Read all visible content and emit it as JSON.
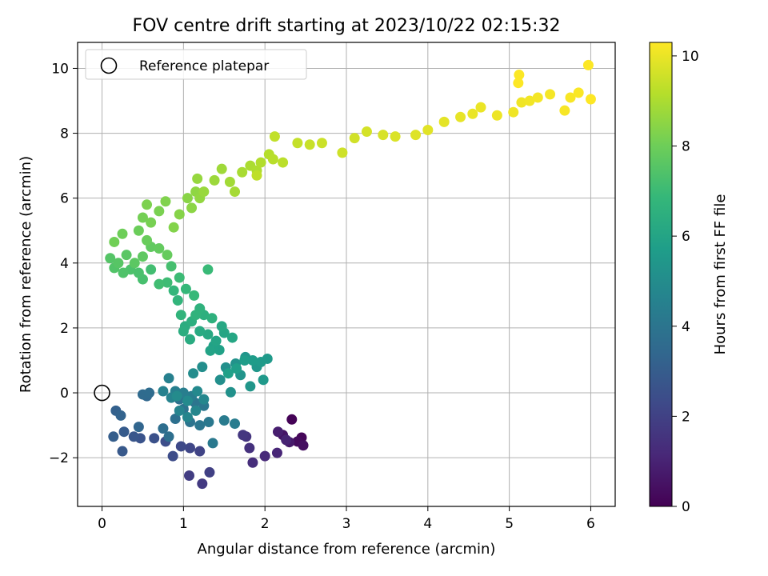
{
  "chart_data": {
    "type": "scatter",
    "title": "FOV centre drift starting at 2023/10/22 02:15:32",
    "xlabel": "Angular distance from reference (arcmin)",
    "ylabel": "Rotation from reference (arcmin)",
    "xlim": [
      -0.3,
      6.3
    ],
    "ylim": [
      -3.5,
      10.8
    ],
    "xticks": [
      0,
      1,
      2,
      3,
      4,
      5,
      6
    ],
    "yticks": [
      -2,
      0,
      2,
      4,
      6,
      8,
      10
    ],
    "xtick_labels": [
      "0",
      "1",
      "2",
      "3",
      "4",
      "5",
      "6"
    ],
    "ytick_labels": [
      "−2",
      "0",
      "2",
      "4",
      "6",
      "8",
      "10"
    ],
    "grid": true,
    "legend": {
      "placement": "top-left",
      "entries": [
        "Reference platepar"
      ]
    },
    "reference_point": {
      "x": 0,
      "y": 0
    },
    "colorbar": {
      "label": "Hours from first FF file",
      "range": [
        0,
        10.3
      ],
      "ticks": [
        0,
        2,
        4,
        6,
        8,
        10
      ],
      "tick_labels": [
        "0",
        "2",
        "4",
        "6",
        "8",
        "10"
      ],
      "colormap": [
        "#440154",
        "#482878",
        "#3e4a89",
        "#31688e",
        "#26828e",
        "#1f9e89",
        "#35b779",
        "#6ece58",
        "#b5de2b",
        "#fde725"
      ]
    },
    "series": [
      {
        "points": [
          [
            2.33,
            -0.82,
            0.05
          ],
          [
            2.45,
            -1.38,
            0.15
          ],
          [
            2.4,
            -1.5,
            0.3
          ],
          [
            2.47,
            -1.62,
            0.4
          ],
          [
            2.22,
            -1.3,
            0.55
          ],
          [
            2.3,
            -1.52,
            0.7
          ],
          [
            2.16,
            -1.2,
            0.85
          ],
          [
            2.26,
            -1.45,
            1.0
          ],
          [
            2.15,
            -1.85,
            1.1
          ],
          [
            2.0,
            -1.95,
            1.2
          ],
          [
            1.85,
            -2.15,
            1.35
          ],
          [
            1.81,
            -1.7,
            1.45
          ],
          [
            1.77,
            -1.35,
            1.55
          ],
          [
            1.73,
            -1.3,
            1.65
          ],
          [
            1.23,
            -2.8,
            1.75
          ],
          [
            1.07,
            -2.55,
            1.85
          ],
          [
            1.32,
            -2.45,
            1.95
          ],
          [
            1.2,
            -1.8,
            2.05
          ],
          [
            1.08,
            -1.7,
            2.15
          ],
          [
            0.97,
            -1.65,
            2.25
          ],
          [
            0.87,
            -1.95,
            2.35
          ],
          [
            0.78,
            -1.5,
            2.45
          ],
          [
            0.64,
            -1.4,
            2.55
          ],
          [
            0.47,
            -1.4,
            2.65
          ],
          [
            0.39,
            -1.35,
            2.75
          ],
          [
            0.25,
            -1.8,
            2.85
          ],
          [
            0.27,
            -1.2,
            2.95
          ],
          [
            0.14,
            -1.35,
            3.05
          ],
          [
            0.17,
            -0.55,
            3.15
          ],
          [
            0.23,
            -0.7,
            3.25
          ],
          [
            0.45,
            -1.05,
            3.35
          ],
          [
            0.55,
            -0.1,
            3.45
          ],
          [
            0.5,
            -0.05,
            3.55
          ],
          [
            0.58,
            0.0,
            3.6
          ],
          [
            0.75,
            -1.1,
            3.7
          ],
          [
            0.82,
            -1.35,
            3.75
          ],
          [
            0.9,
            -0.8,
            3.8
          ],
          [
            0.95,
            -0.2,
            3.85
          ],
          [
            1.0,
            -0.5,
            3.9
          ],
          [
            1.08,
            -0.9,
            3.95
          ],
          [
            1.14,
            -0.3,
            4.0
          ],
          [
            1.2,
            -1.0,
            4.05
          ],
          [
            1.25,
            -0.4,
            4.1
          ],
          [
            1.31,
            -0.9,
            4.15
          ],
          [
            1.36,
            -1.55,
            4.2
          ],
          [
            1.5,
            -0.85,
            4.25
          ],
          [
            1.63,
            -0.95,
            4.3
          ],
          [
            1.1,
            -0.1,
            4.35
          ],
          [
            1.0,
            0.0,
            4.4
          ],
          [
            0.9,
            0.05,
            4.45
          ],
          [
            0.82,
            0.45,
            4.5
          ],
          [
            0.75,
            0.05,
            4.55
          ],
          [
            0.85,
            -0.15,
            4.6
          ],
          [
            0.95,
            -0.55,
            4.65
          ],
          [
            1.05,
            -0.75,
            4.7
          ],
          [
            1.15,
            -0.55,
            4.75
          ],
          [
            1.25,
            -0.2,
            4.8
          ],
          [
            1.17,
            0.05,
            4.85
          ],
          [
            1.05,
            -0.25,
            4.9
          ],
          [
            0.92,
            -0.1,
            4.95
          ],
          [
            1.12,
            0.6,
            5.0
          ],
          [
            1.23,
            0.8,
            5.05
          ],
          [
            1.45,
            0.4,
            5.1
          ],
          [
            1.52,
            0.78,
            5.15
          ],
          [
            1.58,
            0.02,
            5.2
          ],
          [
            1.64,
            0.9,
            5.25
          ],
          [
            1.7,
            0.55,
            5.3
          ],
          [
            1.76,
            1.1,
            5.35
          ],
          [
            1.82,
            0.2,
            5.4
          ],
          [
            1.9,
            0.8,
            5.45
          ],
          [
            1.98,
            0.4,
            5.5
          ],
          [
            2.03,
            1.05,
            5.55
          ],
          [
            1.95,
            0.95,
            5.6
          ],
          [
            1.85,
            1.0,
            5.65
          ],
          [
            1.75,
            1.0,
            5.7
          ],
          [
            1.65,
            0.75,
            5.75
          ],
          [
            1.55,
            0.6,
            5.8
          ],
          [
            1.44,
            1.32,
            5.85
          ],
          [
            1.37,
            1.45,
            5.9
          ],
          [
            1.33,
            1.3,
            5.95
          ],
          [
            1.4,
            1.6,
            6.0
          ],
          [
            1.5,
            1.85,
            6.05
          ],
          [
            1.6,
            1.7,
            6.1
          ],
          [
            1.47,
            2.05,
            6.15
          ],
          [
            1.3,
            1.8,
            6.2
          ],
          [
            1.2,
            1.9,
            6.25
          ],
          [
            1.08,
            1.65,
            6.3
          ],
          [
            1.02,
            2.05,
            6.35
          ],
          [
            1.0,
            1.9,
            6.4
          ],
          [
            1.1,
            2.2,
            6.45
          ],
          [
            1.25,
            2.4,
            6.5
          ],
          [
            1.35,
            2.3,
            6.55
          ],
          [
            1.2,
            2.6,
            6.6
          ],
          [
            1.15,
            2.4,
            6.65
          ],
          [
            0.97,
            2.4,
            6.7
          ],
          [
            0.93,
            2.85,
            6.75
          ],
          [
            0.88,
            3.15,
            6.8
          ],
          [
            1.03,
            3.2,
            6.85
          ],
          [
            1.13,
            3.0,
            6.9
          ],
          [
            1.3,
            3.8,
            6.95
          ],
          [
            0.95,
            3.55,
            7.0
          ],
          [
            0.8,
            3.4,
            7.05
          ],
          [
            0.7,
            3.35,
            7.1
          ],
          [
            0.6,
            3.8,
            7.15
          ],
          [
            0.85,
            3.9,
            7.2
          ],
          [
            0.5,
            3.5,
            7.25
          ],
          [
            0.45,
            3.7,
            7.3
          ],
          [
            0.35,
            3.8,
            7.35
          ],
          [
            0.26,
            3.7,
            7.4
          ],
          [
            0.15,
            3.85,
            7.45
          ],
          [
            0.1,
            4.15,
            7.5
          ],
          [
            0.2,
            4.0,
            7.55
          ],
          [
            0.3,
            4.25,
            7.6
          ],
          [
            0.4,
            4.0,
            7.65
          ],
          [
            0.5,
            4.2,
            7.7
          ],
          [
            0.6,
            4.5,
            7.75
          ],
          [
            0.7,
            4.45,
            7.8
          ],
          [
            0.8,
            4.25,
            7.85
          ],
          [
            0.55,
            4.7,
            7.9
          ],
          [
            0.45,
            5.0,
            7.95
          ],
          [
            0.25,
            4.9,
            8.0
          ],
          [
            0.15,
            4.65,
            8.05
          ],
          [
            0.5,
            5.4,
            8.1
          ],
          [
            0.6,
            5.25,
            8.15
          ],
          [
            0.7,
            5.6,
            8.2
          ],
          [
            0.55,
            5.8,
            8.25
          ],
          [
            0.78,
            5.9,
            8.3
          ],
          [
            0.88,
            5.1,
            8.35
          ],
          [
            0.95,
            5.5,
            8.4
          ],
          [
            1.05,
            6.0,
            8.45
          ],
          [
            1.1,
            5.7,
            8.5
          ],
          [
            1.15,
            6.2,
            8.55
          ],
          [
            1.2,
            6.0,
            8.6
          ],
          [
            1.17,
            6.6,
            8.65
          ],
          [
            1.25,
            6.2,
            8.7
          ],
          [
            1.38,
            6.55,
            8.75
          ],
          [
            1.47,
            6.9,
            8.8
          ],
          [
            1.57,
            6.5,
            8.85
          ],
          [
            1.63,
            6.2,
            8.9
          ],
          [
            1.72,
            6.8,
            8.95
          ],
          [
            1.82,
            7.0,
            9.0
          ],
          [
            1.9,
            6.85,
            9.05
          ],
          [
            1.95,
            7.1,
            9.1
          ],
          [
            2.05,
            7.35,
            9.15
          ],
          [
            2.1,
            7.2,
            9.2
          ],
          [
            2.22,
            7.1,
            9.25
          ],
          [
            1.9,
            6.7,
            9.3
          ],
          [
            2.12,
            7.9,
            9.35
          ],
          [
            2.4,
            7.7,
            9.4
          ],
          [
            2.55,
            7.65,
            9.45
          ],
          [
            2.7,
            7.7,
            9.5
          ],
          [
            2.95,
            7.4,
            9.55
          ],
          [
            3.1,
            7.85,
            9.6
          ],
          [
            3.25,
            8.05,
            9.65
          ],
          [
            3.45,
            7.95,
            9.7
          ],
          [
            3.6,
            7.9,
            9.75
          ],
          [
            3.85,
            7.95,
            9.8
          ],
          [
            4.0,
            8.1,
            9.85
          ],
          [
            4.2,
            8.35,
            9.9
          ],
          [
            4.4,
            8.5,
            9.95
          ],
          [
            4.55,
            8.6,
            10.0
          ],
          [
            4.65,
            8.8,
            10.02
          ],
          [
            4.85,
            8.55,
            10.05
          ],
          [
            5.05,
            8.65,
            10.08
          ],
          [
            5.15,
            8.95,
            10.1
          ],
          [
            5.25,
            9.0,
            10.12
          ],
          [
            5.35,
            9.1,
            10.15
          ],
          [
            5.5,
            9.2,
            10.18
          ],
          [
            5.68,
            8.7,
            10.2
          ],
          [
            5.75,
            9.1,
            10.22
          ],
          [
            5.85,
            9.25,
            10.25
          ],
          [
            5.12,
            9.8,
            10.27
          ],
          [
            5.11,
            9.55,
            10.28
          ],
          [
            5.97,
            10.1,
            10.29
          ],
          [
            6.0,
            9.05,
            10.3
          ]
        ]
      }
    ]
  }
}
